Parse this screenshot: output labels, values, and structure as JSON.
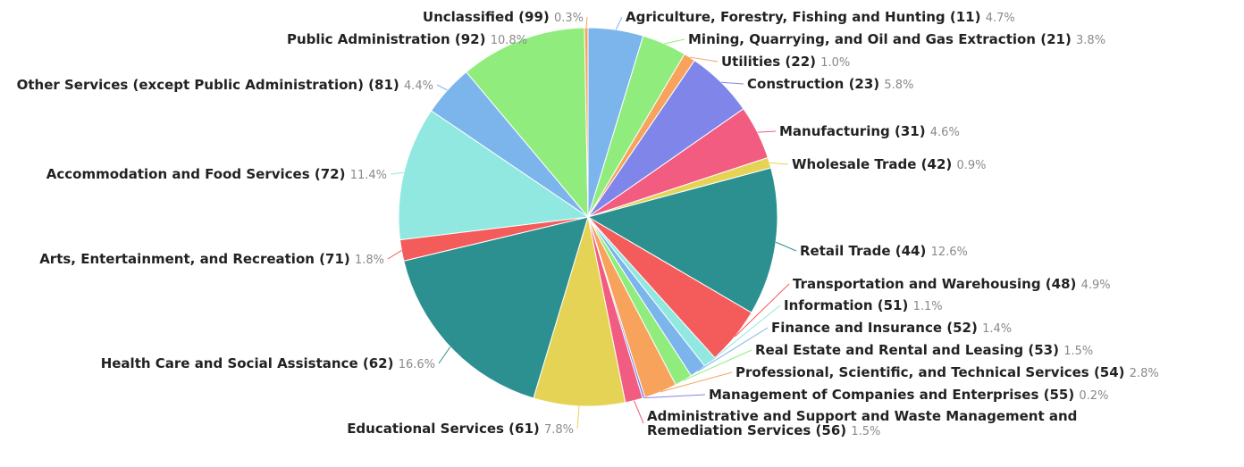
{
  "chart_data": {
    "type": "pie",
    "slices": [
      {
        "label": "Agriculture, Forestry, Fishing and Hunting (11)",
        "pct_text": "4.7%",
        "value": 4.7,
        "color": "#7cb5ec"
      },
      {
        "label": "Mining, Quarrying, and Oil and Gas Extraction (21)",
        "pct_text": "3.8%",
        "value": 3.8,
        "color": "#90ed7d"
      },
      {
        "label": "Utilities (22)",
        "pct_text": "1.0%",
        "value": 1.0,
        "color": "#f7a35c"
      },
      {
        "label": "Construction (23)",
        "pct_text": "5.8%",
        "value": 5.8,
        "color": "#8085e9"
      },
      {
        "label": "Manufacturing (31)",
        "pct_text": "4.6%",
        "value": 4.6,
        "color": "#f15c80"
      },
      {
        "label": "Wholesale Trade (42)",
        "pct_text": "0.9%",
        "value": 0.9,
        "color": "#e4d354"
      },
      {
        "label": "Retail Trade (44)",
        "pct_text": "12.6%",
        "value": 12.6,
        "color": "#2b908f"
      },
      {
        "label": "Transportation and Warehousing (48)",
        "pct_text": "4.9%",
        "value": 4.9,
        "color": "#f45b5b"
      },
      {
        "label": "Information (51)",
        "pct_text": "1.1%",
        "value": 1.1,
        "color": "#91e8e1"
      },
      {
        "label": "Finance and Insurance (52)",
        "pct_text": "1.4%",
        "value": 1.4,
        "color": "#7cb5ec"
      },
      {
        "label": "Real Estate and Rental and Leasing (53)",
        "pct_text": "1.5%",
        "value": 1.5,
        "color": "#90ed7d"
      },
      {
        "label": "Professional, Scientific, and Technical Services (54)",
        "pct_text": "2.8%",
        "value": 2.8,
        "color": "#f7a35c"
      },
      {
        "label": "Management of Companies and Enterprises (55)",
        "pct_text": "0.2%",
        "value": 0.2,
        "color": "#8085e9"
      },
      {
        "label": "Administrative and Support and Waste Management and Remediation Services (56)",
        "pct_text": "1.5%",
        "value": 1.5,
        "color": "#f15c80"
      },
      {
        "label": "Educational Services (61)",
        "pct_text": "7.8%",
        "value": 7.8,
        "color": "#e4d354"
      },
      {
        "label": "Health Care and Social Assistance (62)",
        "pct_text": "16.6%",
        "value": 16.6,
        "color": "#2b908f"
      },
      {
        "label": "Arts, Entertainment, and Recreation (71)",
        "pct_text": "1.8%",
        "value": 1.8,
        "color": "#f45b5b"
      },
      {
        "label": "Accommodation and Food Services (72)",
        "pct_text": "11.4%",
        "value": 11.4,
        "color": "#91e8e1"
      },
      {
        "label": "Other Services (except Public Administration) (81)",
        "pct_text": "4.4%",
        "value": 4.4,
        "color": "#7cb5ec"
      },
      {
        "label": "Public Administration (92)",
        "pct_text": "10.8%",
        "value": 10.8,
        "color": "#90ed7d"
      },
      {
        "label": "Unclassified (99)",
        "pct_text": "0.3%",
        "value": 0.3,
        "color": "#f7a35c"
      }
    ]
  }
}
